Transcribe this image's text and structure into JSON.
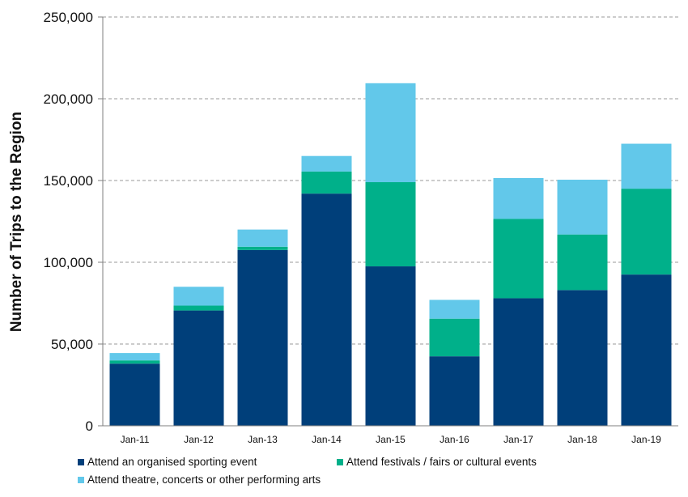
{
  "chart_data": {
    "type": "bar",
    "stacked": true,
    "ylabel": "Number of Trips to the Region",
    "xlabel": "",
    "ylim": [
      0,
      250000
    ],
    "yticks": [
      0,
      50000,
      100000,
      150000,
      200000,
      250000
    ],
    "ytick_labels": [
      "0",
      "50,000",
      "100,000",
      "150,000",
      "200,000",
      "250,000"
    ],
    "grid": "horizontal dashed",
    "legend_position": "bottom",
    "categories": [
      "Jan-11",
      "Jan-12",
      "Jan-13",
      "Jan-14",
      "Jan-15",
      "Jan-16",
      "Jan-17",
      "Jan-18",
      "Jan-19"
    ],
    "series": [
      {
        "name": "Attend an organised sporting event",
        "color": "#003f7a",
        "values": [
          38000,
          70500,
          107500,
          142000,
          97500,
          42500,
          78000,
          83000,
          92500
        ]
      },
      {
        "name": "Attend festivals / fairs or cultural events",
        "color": "#00b08a",
        "values": [
          2000,
          3000,
          2000,
          13500,
          51500,
          23000,
          48500,
          34000,
          52500
        ]
      },
      {
        "name": "Attend theatre, concerts or other performing arts",
        "color": "#62c8ea",
        "values": [
          4500,
          11500,
          10500,
          9500,
          60500,
          11500,
          25000,
          33500,
          27500
        ]
      }
    ]
  }
}
